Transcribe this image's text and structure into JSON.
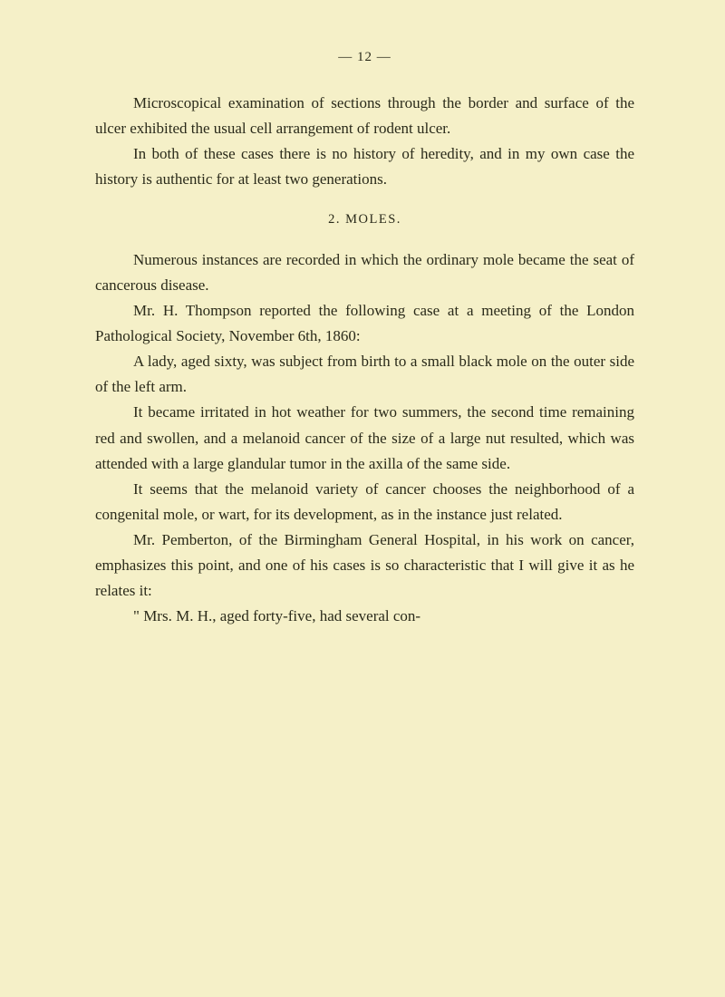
{
  "page": {
    "number": "— 12 —",
    "background_color": "#f5f0c8",
    "text_color": "#2a2a1a"
  },
  "paragraphs": {
    "p1": "Microscopical examination of sections through the border and surface of the ulcer exhibited the usual cell arrangement of rodent ulcer.",
    "p2": "In both of these cases there is no history of heredity, and in my own case the history is authentic for at least two generations.",
    "heading": "2.   MOLES.",
    "p3": "Numerous instances are recorded in which the ordinary mole became the seat of cancerous disease.",
    "p4": "Mr. H. Thompson reported the following case at a meeting of the London Pathological Society, November 6th, 1860:",
    "p5": "A lady, aged sixty, was subject from birth to a small black mole on the outer side of the left arm.",
    "p6": "It became irritated in hot weather for two summers, the second time remaining red and swollen, and a melanoid cancer of the size of a large nut resulted, which was attended with a large glandular tumor in the axilla of the same side.",
    "p7": "It seems that the melanoid variety of cancer chooses the neighborhood of a congenital mole, or wart, for its development, as in the instance just related.",
    "p8": "Mr. Pemberton, of the Birmingham General Hospital, in his work on cancer, emphasizes this point, and one of his cases is so characteristic that I will give it as he relates it:",
    "p9": "\" Mrs. M. H., aged forty-five, had several con-"
  },
  "typography": {
    "body_font_family": "Georgia, Times New Roman, serif",
    "body_font_size": 17,
    "line_height": 1.65,
    "heading_font_size": 14.5,
    "page_number_font_size": 15,
    "indent": 42
  }
}
